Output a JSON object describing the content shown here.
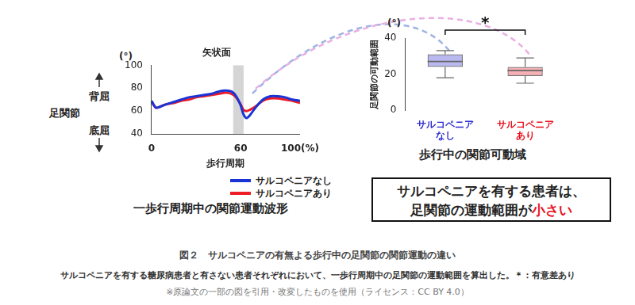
{
  "chart_data": [
    {
      "type": "line",
      "title": "矢状面",
      "x_label": "歩行周期",
      "y_label": "足関節",
      "y_unit": "(°)",
      "y_upper_label": "背屈",
      "y_lower_label": "底屈",
      "caption": "一歩行周期中の関節運動波形",
      "x": [
        0,
        3,
        6,
        10,
        15,
        20,
        25,
        30,
        35,
        40,
        45,
        50,
        54,
        57,
        60,
        62,
        64,
        66,
        70,
        75,
        80,
        85,
        90,
        95,
        100
      ],
      "series": [
        {
          "name": "サルコペニアなし",
          "color": "#1a33d6",
          "values": [
            69,
            63,
            64,
            66,
            68,
            70,
            72,
            73,
            74,
            75,
            77,
            78,
            77,
            73,
            65,
            57,
            54,
            56,
            63,
            70,
            73,
            73,
            72,
            70,
            69
          ]
        },
        {
          "name": "サルコペニアあり",
          "color": "#ee1c25",
          "values": [
            68,
            63,
            64,
            66,
            67,
            69,
            70,
            72,
            73,
            74,
            75,
            76,
            75,
            72,
            66,
            61,
            60,
            61,
            64,
            69,
            71,
            71,
            70,
            69,
            67
          ]
        }
      ],
      "xlim": [
        0,
        100
      ],
      "xticks": [
        0,
        60,
        {
          "value": 100,
          "label": "100(%)"
        }
      ],
      "ylim": [
        40,
        100
      ],
      "yticks": [
        40,
        60,
        80,
        100
      ],
      "grid": false,
      "legend": "bottom right",
      "shaded_x": [
        55,
        62
      ]
    },
    {
      "type": "box",
      "title": "歩行中の関節可動域",
      "y_label": "足関節の可動範囲",
      "y_unit": "(°)",
      "categories": [
        "サルコペニア\nなし",
        "サルコペニア\nあり"
      ],
      "colors": [
        "#2b2bd0",
        "#e8101c"
      ],
      "stats": [
        {
          "min": 18,
          "q1": 24,
          "median": 27,
          "q3": 31,
          "max": 33
        },
        {
          "min": 15,
          "q1": 19,
          "median": 22,
          "q3": 24,
          "max": 29
        }
      ],
      "ylim": [
        0,
        40
      ],
      "yticks": [
        0,
        20,
        40
      ],
      "grid": false,
      "significance": "*"
    }
  ],
  "callout": {
    "line1": "サルコペニアを有する患者は、",
    "line2": "足関節の運動範囲が",
    "line2_emphasis": "小さい"
  },
  "figure_caption": {
    "title": "図２　サルコペニアの有無よる歩行中の足関節の関節運動の違い",
    "text": "サルコペニアを有する糖尿病患者と有さない患者それぞれにおいて、一歩行周期中の足関節の運動範囲を算出した。＊：有意差あり",
    "source": "※原論文の一部の図を引用・改変したものを使用（ライセンス：CC BY 4.0）"
  }
}
